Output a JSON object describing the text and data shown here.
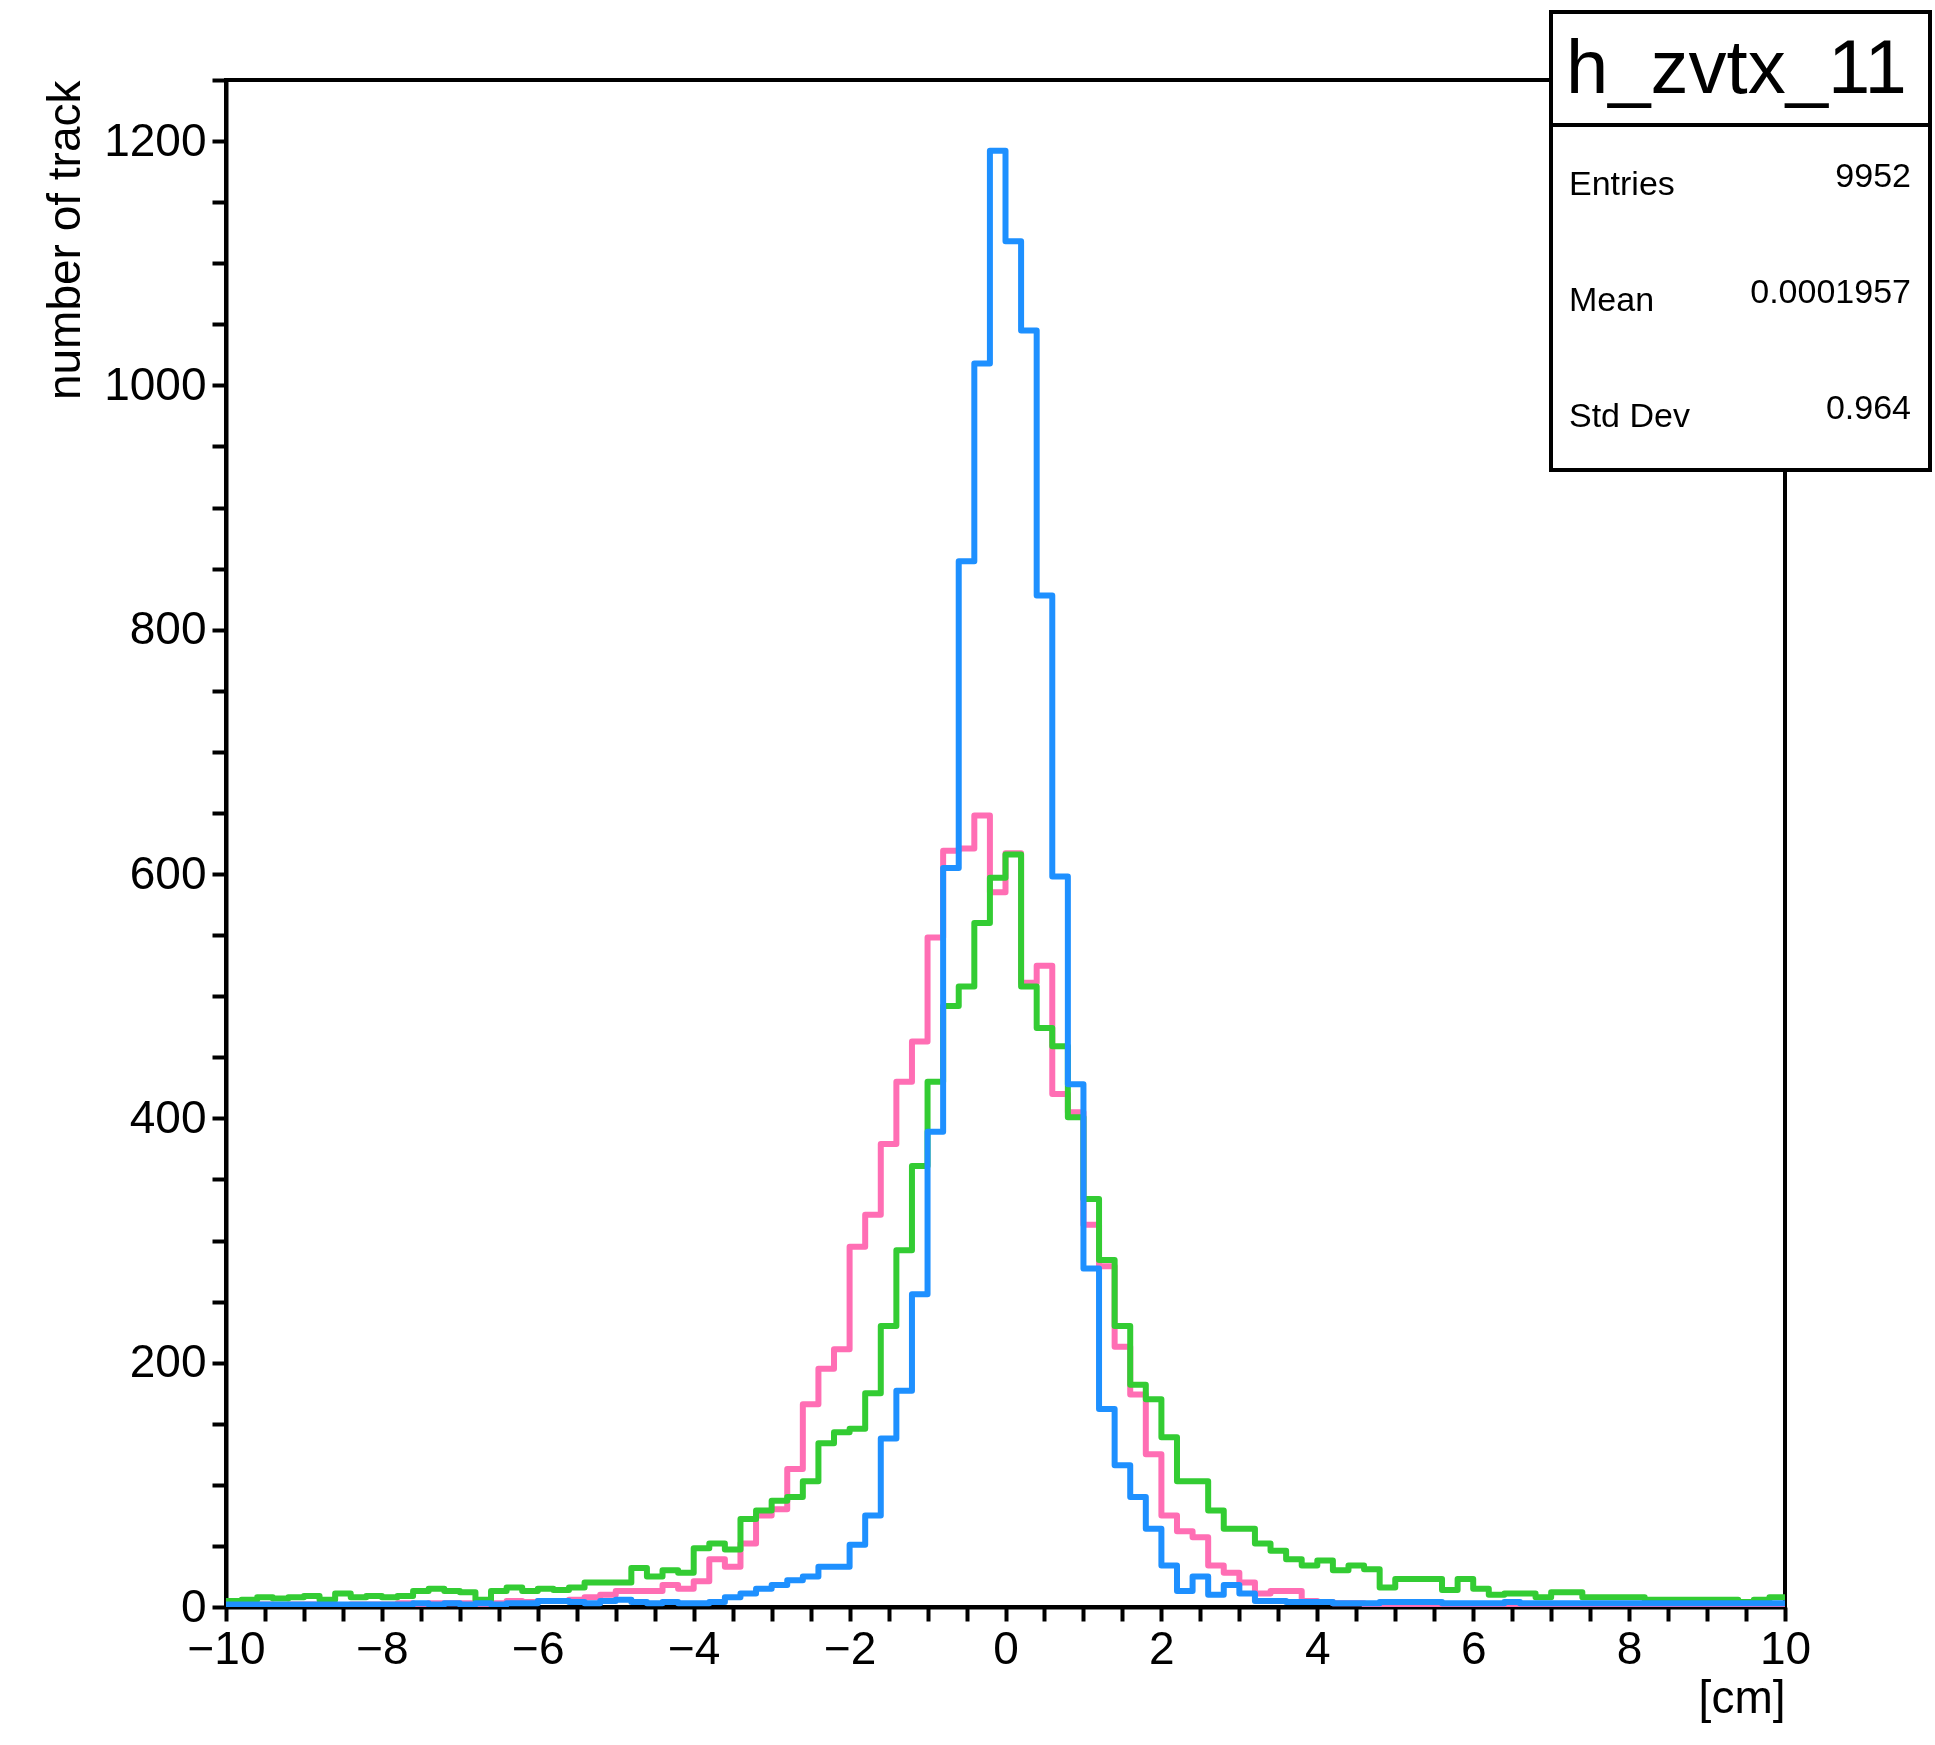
{
  "chart_data": {
    "type": "histogram",
    "ylabel": "number of track",
    "xlabel": "[cm]",
    "annotations": [
      "h_zvtx_11",
      "Entries 9952",
      "Mean 0.0001957",
      "Std Dev 0.964"
    ],
    "bins": [
      -10.0,
      -9.8,
      -9.6,
      -9.4,
      -9.2,
      -9.0,
      -8.8,
      -8.6,
      -8.4,
      -8.2,
      -8.0,
      -7.8,
      -7.6,
      -7.4,
      -7.2,
      -7.0,
      -6.8,
      -6.6,
      -6.4,
      -6.2,
      -6.0,
      -5.8,
      -5.6,
      -5.4,
      -5.2,
      -5.0,
      -4.8,
      -4.6,
      -4.4,
      -4.2,
      -4.0,
      -3.8,
      -3.6,
      -3.4,
      -3.2,
      -3.0,
      -2.8,
      -2.6,
      -2.4,
      -2.2,
      -2.0,
      -1.8,
      -1.6,
      -1.4,
      -1.2,
      -1.0,
      -0.8,
      -0.6,
      -0.4,
      -0.2,
      0.0,
      0.2,
      0.4,
      0.6,
      0.8,
      1.0,
      1.2,
      1.4,
      1.6,
      1.8,
      2.0,
      2.2,
      2.4,
      2.6,
      2.8,
      3.0,
      3.2,
      3.4,
      3.6,
      3.8,
      4.0,
      4.2,
      4.4,
      4.6,
      4.8,
      5.0,
      5.2,
      5.4,
      5.6,
      5.8,
      6.0,
      6.2,
      6.4,
      6.6,
      6.8,
      7.0,
      7.2,
      7.4,
      7.6,
      7.8,
      8.0,
      8.2,
      8.4,
      8.6,
      8.8,
      9.0,
      9.2,
      9.4,
      9.6,
      9.8,
      10.0
    ],
    "series": [
      {
        "color": "#ff6eb4",
        "values": [
          2,
          2,
          2,
          1,
          2,
          2,
          2,
          1,
          2,
          2,
          2,
          3,
          2,
          3,
          3,
          3,
          2,
          3,
          5,
          4,
          5,
          5,
          6,
          8,
          10,
          13,
          13,
          13,
          18,
          15,
          21,
          39,
          33,
          52,
          75,
          80,
          113,
          166,
          195,
          211,
          295,
          321,
          379,
          430,
          463,
          548,
          619,
          621,
          648,
          585,
          617,
          511,
          525,
          420,
          405,
          313,
          279,
          213,
          174,
          125,
          75,
          62,
          57,
          34,
          28,
          20,
          11,
          13,
          13,
          5,
          4,
          3,
          3,
          2,
          2,
          2,
          2,
          1,
          2,
          2,
          2,
          2,
          1,
          2,
          2,
          2,
          1,
          2,
          1,
          2,
          2,
          2,
          1,
          2,
          2,
          2,
          1,
          2,
          2,
          2
        ]
      },
      {
        "color": "#33cc33",
        "values": [
          5,
          6,
          8,
          7,
          8,
          9,
          6,
          11,
          8,
          9,
          8,
          9,
          13,
          15,
          13,
          12,
          6,
          13,
          16,
          13,
          15,
          14,
          16,
          20,
          20,
          20,
          32,
          25,
          30,
          28,
          48,
          52,
          47,
          72,
          79,
          87,
          90,
          103,
          134,
          143,
          146,
          175,
          230,
          292,
          361,
          430,
          492,
          508,
          560,
          597,
          616,
          508,
          474,
          459,
          401,
          334,
          284,
          230,
          182,
          170,
          139,
          103,
          103,
          79,
          64,
          64,
          52,
          46,
          39,
          34,
          38,
          30,
          34,
          31,
          16,
          23,
          23,
          23,
          14,
          23,
          15,
          10,
          11,
          11,
          8,
          12,
          12,
          8,
          8,
          8,
          8,
          6,
          6,
          6,
          6,
          6,
          6,
          4,
          6,
          8
        ]
      },
      {
        "color": "#1e90ff",
        "values": [
          2,
          2,
          2,
          2,
          2,
          2,
          2,
          2,
          2,
          2,
          2,
          2,
          3,
          2,
          3,
          2,
          3,
          2,
          3,
          3,
          5,
          5,
          4,
          3,
          5,
          6,
          4,
          3,
          4,
          3,
          3,
          4,
          8,
          11,
          15,
          18,
          22,
          25,
          33,
          33,
          51,
          75,
          138,
          177,
          256,
          389,
          605,
          856,
          1018,
          1192,
          1118,
          1045,
          828,
          598,
          428,
          277,
          162,
          116,
          90,
          64,
          34,
          13,
          25,
          10,
          18,
          11,
          5,
          5,
          4,
          4,
          4,
          3,
          3,
          3,
          4,
          4,
          4,
          4,
          3,
          3,
          3,
          3,
          4,
          3,
          3,
          3,
          3,
          3,
          3,
          3,
          3,
          3,
          3,
          3,
          3,
          3,
          3,
          3,
          3,
          3
        ]
      }
    ],
    "xlim": [
      -10,
      10
    ],
    "xticks": [
      -10,
      {
        "value": -9.5,
        "label": null
      },
      {
        "value": -9,
        "label": null
      },
      {
        "value": -8.5,
        "label": null
      },
      -8,
      {
        "value": -7.5,
        "label": null
      },
      {
        "value": -7,
        "label": null
      },
      {
        "value": -6.5,
        "label": null
      },
      -6,
      {
        "value": -5.5,
        "label": null
      },
      {
        "value": -5,
        "label": null
      },
      {
        "value": -4.5,
        "label": null
      },
      -4,
      {
        "value": -3.5,
        "label": null
      },
      {
        "value": -3,
        "label": null
      },
      {
        "value": -2.5,
        "label": null
      },
      -2,
      {
        "value": -1.5,
        "label": null
      },
      {
        "value": -1,
        "label": null
      },
      {
        "value": -0.5,
        "label": null
      },
      0,
      {
        "value": 0.5,
        "label": null
      },
      {
        "value": 1,
        "label": null
      },
      {
        "value": 1.5,
        "label": null
      },
      2,
      {
        "value": 2.5,
        "label": null
      },
      {
        "value": 3,
        "label": null
      },
      {
        "value": 3.5,
        "label": null
      },
      4,
      {
        "value": 4.5,
        "label": null
      },
      {
        "value": 5,
        "label": null
      },
      {
        "value": 5.5,
        "label": null
      },
      6,
      {
        "value": 6.5,
        "label": null
      },
      {
        "value": 7,
        "label": null
      },
      {
        "value": 7.5,
        "label": null
      },
      8,
      {
        "value": 8.5,
        "label": null
      },
      {
        "value": 9,
        "label": null
      },
      {
        "value": 9.5,
        "label": null
      },
      10
    ],
    "ylim": [
      0,
      1250
    ],
    "yticks": [
      0,
      {
        "value": 50,
        "label": null
      },
      {
        "value": 100,
        "label": null
      },
      {
        "value": 150,
        "label": null
      },
      200,
      {
        "value": 250,
        "label": null
      },
      {
        "value": 300,
        "label": null
      },
      {
        "value": 350,
        "label": null
      },
      400,
      {
        "value": 450,
        "label": null
      },
      {
        "value": 500,
        "label": null
      },
      {
        "value": 550,
        "label": null
      },
      600,
      {
        "value": 650,
        "label": null
      },
      {
        "value": 700,
        "label": null
      },
      {
        "value": 750,
        "label": null
      },
      800,
      {
        "value": 850,
        "label": null
      },
      {
        "value": 900,
        "label": null
      },
      {
        "value": 950,
        "label": null
      },
      1000,
      {
        "value": 1050,
        "label": null
      },
      {
        "value": 1100,
        "label": null
      },
      {
        "value": 1150,
        "label": null
      },
      1200,
      {
        "value": 1250,
        "label": null
      }
    ],
    "grid": false,
    "line_style": "solid",
    "marker": "none"
  }
}
